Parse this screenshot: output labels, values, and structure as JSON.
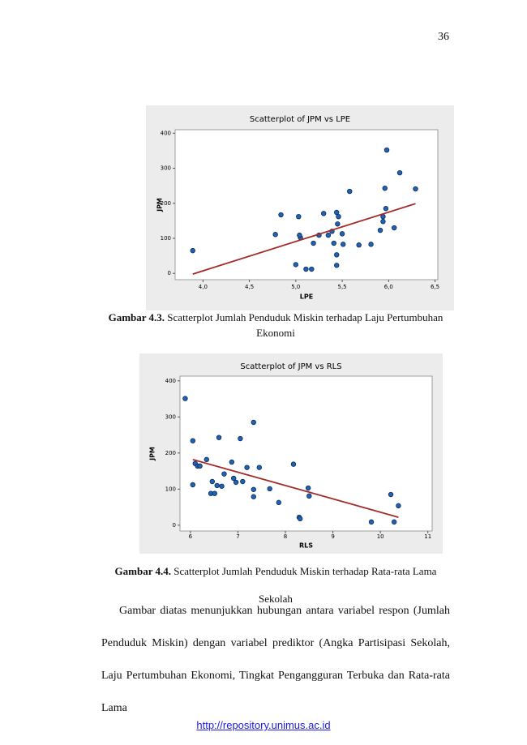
{
  "page_number": "36",
  "chart_data": [
    {
      "type": "scatter",
      "title": "Scatterplot of JPM vs LPE",
      "x_label": "LPE",
      "y_label": "JPM",
      "color": "#1f63b5",
      "x": [
        3.89,
        5.98,
        6.12,
        6.29,
        5.58,
        5.96,
        5.97,
        5.94,
        5.94,
        5.91,
        6.06,
        4.84,
        5.03,
        5.3,
        5.44,
        5.46,
        5.45,
        5.39,
        5.35,
        5.25,
        5.19,
        5.05,
        5.04,
        4.78,
        5.41,
        5.51,
        5.5,
        5.68,
        5.81,
        5.44,
        5.44,
        5.0,
        5.11,
        5.17
      ],
      "values": [
        65,
        352,
        287,
        241,
        234,
        243,
        185,
        162,
        148,
        123,
        130,
        167,
        162,
        171,
        174,
        162,
        141,
        120,
        109,
        109,
        86,
        102,
        109,
        111,
        86,
        83,
        113,
        81,
        83,
        53,
        23,
        25,
        12,
        12
      ],
      "fit_line": {
        "x": [
          3.89,
          6.29
        ],
        "values": [
          -2,
          199
        ],
        "color": "#a52a2a"
      },
      "xlim": [
        3.7,
        6.53
      ],
      "ylim": [
        -18,
        410
      ],
      "xticks": [
        {
          "value": 4,
          "label": "4,0"
        },
        {
          "value": 4.5,
          "label": "4,5"
        },
        {
          "value": 5,
          "label": "5,0"
        },
        {
          "value": 5.5,
          "label": "5,5"
        },
        {
          "value": 6,
          "label": "6,0"
        },
        {
          "value": 6.5,
          "label": "6,5"
        }
      ],
      "yticks": [
        0,
        100,
        200,
        300,
        400
      ]
    },
    {
      "type": "scatter",
      "title": "Scatterplot of JPM vs RLS",
      "x_label": "RLS",
      "y_label": "JPM",
      "color": "#1f63b5",
      "x": [
        5.89,
        6.05,
        6.6,
        7.33,
        7.05,
        6.1,
        6.15,
        6.2,
        6.34,
        6.87,
        7.19,
        7.45,
        8.17,
        6.71,
        6.91,
        6.96,
        7.1,
        6.56,
        6.66,
        6.46,
        6.05,
        6.43,
        6.51,
        7.33,
        7.33,
        7.67,
        8.48,
        8.5,
        7.86,
        8.29,
        8.31,
        9.81,
        10.22,
        10.38,
        10.29
      ],
      "values": [
        351,
        234,
        243,
        285,
        240,
        171,
        164,
        164,
        182,
        175,
        160,
        160,
        169,
        142,
        130,
        119,
        121,
        110,
        108,
        121,
        112,
        88,
        88,
        99,
        79,
        101,
        103,
        81,
        63,
        22,
        18,
        9,
        85,
        54,
        9
      ],
      "fit_line": {
        "x": [
          6.05,
          10.38
        ],
        "values": [
          182,
          22
        ],
        "color": "#a52a2a"
      },
      "xlim": [
        5.78,
        11.09
      ],
      "ylim": [
        -16,
        413
      ],
      "xticks": [
        6,
        7,
        8,
        9,
        10,
        11
      ],
      "yticks": [
        0,
        100,
        200,
        300,
        400
      ]
    }
  ],
  "captions": [
    {
      "label": "Gambar 4.3.",
      "text": "Scatterplot Jumlah Penduduk Miskin terhadap Laju Pertumbuhan Ekonomi"
    },
    {
      "label": "Gambar 4.4.",
      "text": "Scatterplot Jumlah Penduduk Miskin terhadap Rata-rata Lama Sekolah"
    }
  ],
  "paragraph": "Gambar diatas menunjukkan hubungan antara variabel respon (Jumlah Penduduk Miskin) dengan variabel prediktor (Angka Partisipasi Sekolah, Laju Pertumbuhan Ekonomi, Tingkat Pengangguran Terbuka dan Rata-rata Lama",
  "footer": "http://repository.unimus.ac.id"
}
